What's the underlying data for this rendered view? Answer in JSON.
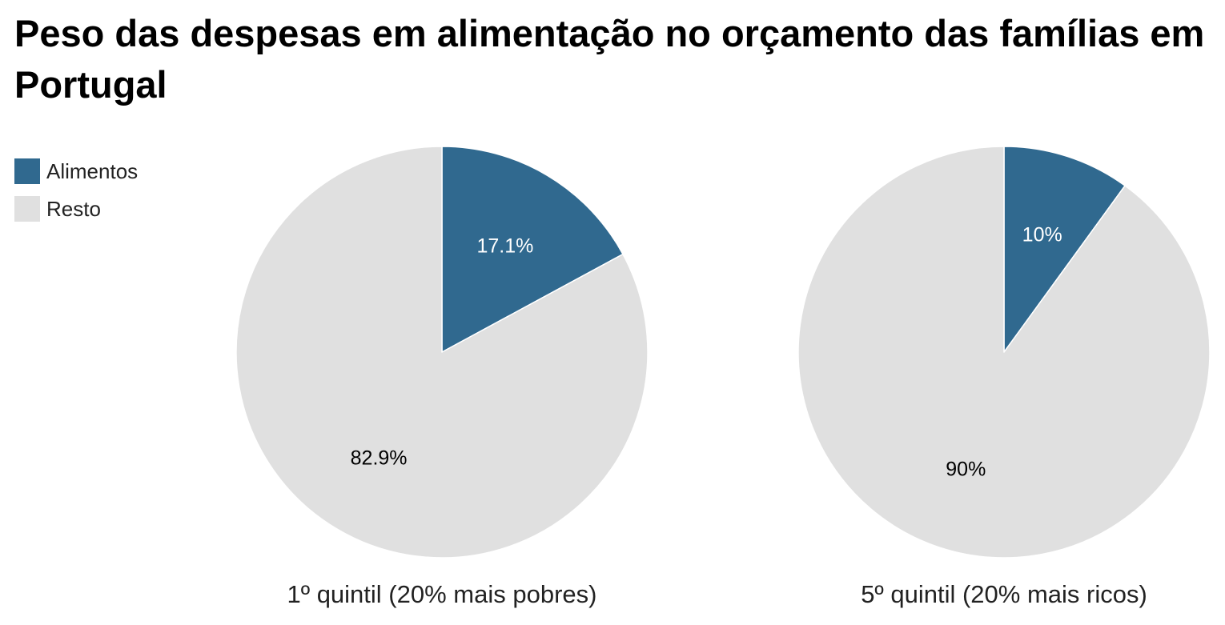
{
  "chart_data": {
    "type": "pie",
    "title": "Peso das despesas em alimentação no orçamento das famílias em Portugal",
    "legend": {
      "position": "top-left",
      "items": [
        {
          "label": "Alimentos",
          "color": "#30698f"
        },
        {
          "label": "Resto",
          "color": "#e0e0e0"
        }
      ]
    },
    "pies": [
      {
        "caption": "1º quintil (20% mais pobres)",
        "slices": [
          {
            "name": "Alimentos",
            "value": 17.1,
            "label": "17.1%",
            "color": "#30698f",
            "label_color": "#ffffff"
          },
          {
            "name": "Resto",
            "value": 82.9,
            "label": "82.9%",
            "color": "#e0e0e0",
            "label_color": "#000000"
          }
        ]
      },
      {
        "caption": "5º quintil (20% mais ricos)",
        "slices": [
          {
            "name": "Alimentos",
            "value": 10,
            "label": "10%",
            "color": "#30698f",
            "label_color": "#ffffff"
          },
          {
            "name": "Resto",
            "value": 90,
            "label": "90%",
            "color": "#e0e0e0",
            "label_color": "#000000"
          }
        ]
      }
    ]
  }
}
